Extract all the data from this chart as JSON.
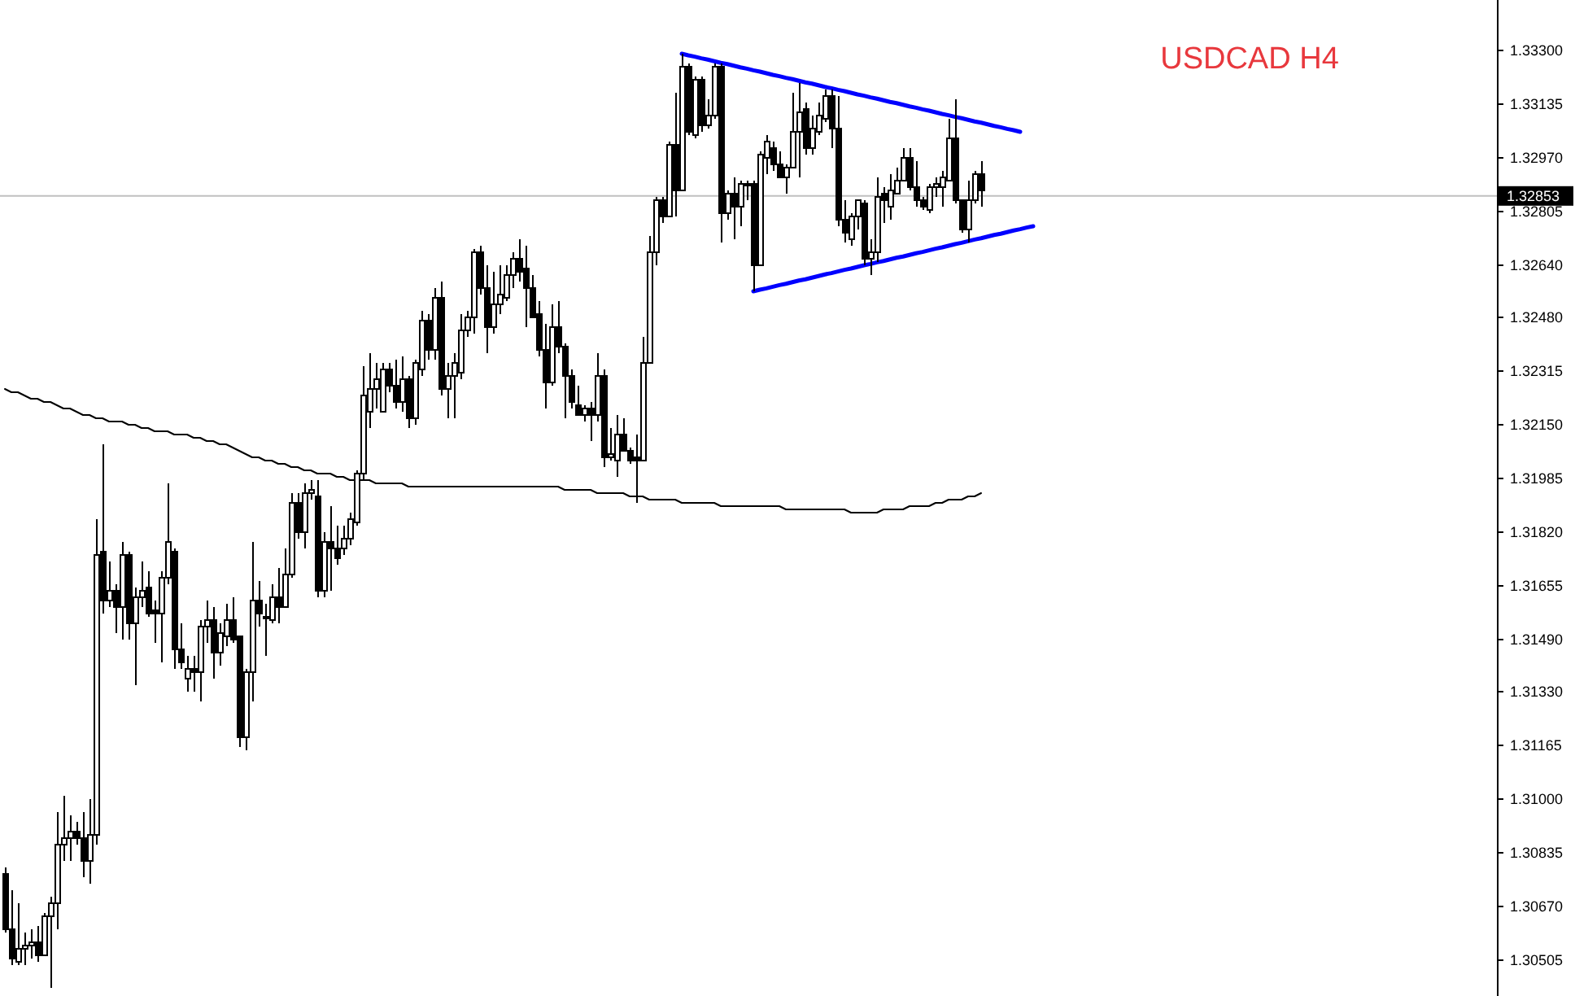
{
  "chart_data": {
    "type": "candlestick",
    "title": "USDCAD H4",
    "categories": [
      null,
      null,
      null,
      null,
      null,
      null,
      null,
      null,
      null,
      null,
      null,
      null,
      null,
      null,
      null,
      null,
      null,
      null,
      null,
      null,
      null,
      null,
      null,
      null,
      null,
      null,
      null,
      null,
      null,
      null,
      null,
      null,
      null,
      null,
      null,
      null,
      null,
      null,
      null,
      null,
      null,
      null,
      null,
      null,
      null,
      null,
      null,
      null,
      null,
      null,
      null,
      null,
      null,
      null,
      null,
      null,
      null,
      null,
      null,
      null,
      null,
      null,
      null,
      null,
      null,
      null,
      null,
      null,
      null,
      null,
      null,
      null,
      null,
      null,
      null,
      null,
      null,
      null,
      null,
      null,
      null,
      null,
      null,
      null,
      null,
      null,
      null,
      null,
      null,
      null,
      null,
      null,
      null,
      null,
      null,
      null,
      null,
      null,
      null,
      null,
      null,
      null,
      null,
      null,
      null,
      null,
      null,
      null,
      null,
      null,
      null,
      null,
      null,
      null,
      null,
      null,
      null,
      null,
      null,
      null,
      null,
      null,
      null,
      null,
      null,
      null,
      null,
      null,
      null,
      null,
      null,
      null,
      null,
      null,
      null,
      null,
      null,
      null,
      null,
      null,
      null,
      null,
      null,
      null,
      null,
      null,
      null,
      null,
      null,
      null,
      null,
      null,
      null,
      null,
      null,
      null,
      null,
      null,
      null
    ],
    "ohlc": [
      [
        1.3077,
        1.3079,
        1.3059,
        1.306
      ],
      [
        1.306,
        1.3072,
        1.3049,
        1.3051
      ],
      [
        1.305,
        1.3068,
        1.3049,
        1.3054
      ],
      [
        1.3054,
        1.3059,
        1.3049,
        1.3055
      ],
      [
        1.3055,
        1.306,
        1.3051,
        1.3056
      ],
      [
        1.3056,
        1.3061,
        1.305,
        1.3052
      ],
      [
        1.3052,
        1.3065,
        1.3052,
        1.3064
      ],
      [
        1.3064,
        1.307,
        1.3042,
        1.3068
      ],
      [
        1.3068,
        1.3096,
        1.306,
        1.3086
      ],
      [
        1.3086,
        1.3101,
        1.3081,
        1.3088
      ],
      [
        1.3088,
        1.3095,
        1.3081,
        1.309
      ],
      [
        1.309,
        1.3093,
        1.3086,
        1.3088
      ],
      [
        1.3088,
        1.3096,
        1.3076,
        1.3081
      ],
      [
        1.3081,
        1.31,
        1.3074,
        1.3089
      ],
      [
        1.3089,
        1.3186,
        1.3086,
        1.3175
      ],
      [
        1.3176,
        1.3209,
        1.3157,
        1.3161
      ],
      [
        1.3161,
        1.3173,
        1.3159,
        1.3164
      ],
      [
        1.3164,
        1.3166,
        1.3151,
        1.3159
      ],
      [
        1.3159,
        1.3179,
        1.3149,
        1.3175
      ],
      [
        1.3175,
        1.3176,
        1.3149,
        1.3154
      ],
      [
        1.3154,
        1.3165,
        1.3135,
        1.3162
      ],
      [
        1.3162,
        1.3173,
        1.3159,
        1.3164
      ],
      [
        1.3165,
        1.317,
        1.3156,
        1.3157
      ],
      [
        1.3158,
        1.3161,
        1.3148,
        1.3157
      ],
      [
        1.3157,
        1.317,
        1.3142,
        1.3168
      ],
      [
        1.3168,
        1.3197,
        1.3166,
        1.3179
      ],
      [
        1.3176,
        1.3177,
        1.314,
        1.3146
      ],
      [
        1.3146,
        1.3154,
        1.314,
        1.3142
      ],
      [
        1.3137,
        1.3144,
        1.3133,
        1.314
      ],
      [
        1.314,
        1.3144,
        1.3133,
        1.3139
      ],
      [
        1.3139,
        1.3155,
        1.313,
        1.3153
      ],
      [
        1.3153,
        1.3161,
        1.3148,
        1.3155
      ],
      [
        1.3155,
        1.3159,
        1.3137,
        1.3145
      ],
      [
        1.3145,
        1.3154,
        1.3141,
        1.3151
      ],
      [
        1.315,
        1.316,
        1.3147,
        1.3155
      ],
      [
        1.3155,
        1.3162,
        1.3148,
        1.3149
      ],
      [
        1.315,
        1.315,
        1.3116,
        1.3119
      ],
      [
        1.3119,
        1.314,
        1.3115,
        1.3139
      ],
      [
        1.3139,
        1.3179,
        1.313,
        1.3161
      ],
      [
        1.3161,
        1.3167,
        1.3153,
        1.3157
      ],
      [
        1.3156,
        1.316,
        1.3144,
        1.3156
      ],
      [
        1.3155,
        1.3166,
        1.3154,
        1.3162
      ],
      [
        1.3162,
        1.3171,
        1.3154,
        1.3159
      ],
      [
        1.3159,
        1.3177,
        1.3159,
        1.3169
      ],
      [
        1.3169,
        1.3194,
        1.3168,
        1.3191
      ],
      [
        1.3191,
        1.3194,
        1.318,
        1.3182
      ],
      [
        1.3182,
        1.3197,
        1.3177,
        1.3194
      ],
      [
        1.3194,
        1.3198,
        1.3192,
        1.3195
      ],
      [
        1.3193,
        1.3198,
        1.3162,
        1.3164
      ],
      [
        1.3164,
        1.3182,
        1.3162,
        1.3179
      ],
      [
        1.3179,
        1.319,
        1.3164,
        1.3177
      ],
      [
        1.3177,
        1.3184,
        1.3172,
        1.3174
      ],
      [
        1.3177,
        1.3184,
        1.3175,
        1.318
      ],
      [
        1.318,
        1.3188,
        1.3178,
        1.3186
      ],
      [
        1.3185,
        1.3201,
        1.3184,
        1.32
      ],
      [
        1.32,
        1.3233,
        1.3198,
        1.3224
      ],
      [
        1.3219,
        1.3237,
        1.3214,
        1.3226
      ],
      [
        1.3226,
        1.3234,
        1.322,
        1.3229
      ],
      [
        1.3219,
        1.3234,
        1.3219,
        1.3232
      ],
      [
        1.3232,
        1.3234,
        1.3225,
        1.3227
      ],
      [
        1.3227,
        1.3235,
        1.322,
        1.3222
      ],
      [
        1.3222,
        1.3236,
        1.3219,
        1.3229
      ],
      [
        1.3229,
        1.323,
        1.3214,
        1.3217
      ],
      [
        1.3217,
        1.3235,
        1.3215,
        1.3234
      ],
      [
        1.3232,
        1.325,
        1.323,
        1.3247
      ],
      [
        1.3247,
        1.3249,
        1.3235,
        1.3238
      ],
      [
        1.3238,
        1.3257,
        1.3235,
        1.3254
      ],
      [
        1.3254,
        1.3259,
        1.3224,
        1.3226
      ],
      [
        1.3226,
        1.3234,
        1.3217,
        1.323
      ],
      [
        1.323,
        1.3237,
        1.3217,
        1.3234
      ],
      [
        1.3231,
        1.3249,
        1.3229,
        1.3244
      ],
      [
        1.3244,
        1.325,
        1.3242,
        1.3248
      ],
      [
        1.3248,
        1.3269,
        1.3243,
        1.3268
      ],
      [
        1.3268,
        1.327,
        1.3255,
        1.3257
      ],
      [
        1.3257,
        1.3264,
        1.3237,
        1.3245
      ],
      [
        1.3245,
        1.3262,
        1.3243,
        1.3252
      ],
      [
        1.3252,
        1.3264,
        1.3249,
        1.3255
      ],
      [
        1.3254,
        1.3264,
        1.3253,
        1.3261
      ],
      [
        1.3261,
        1.3268,
        1.3257,
        1.3266
      ],
      [
        1.3266,
        1.3272,
        1.3259,
        1.3262
      ],
      [
        1.3263,
        1.327,
        1.3245,
        1.3257
      ],
      [
        1.3257,
        1.3261,
        1.3248,
        1.3248
      ],
      [
        1.3249,
        1.3253,
        1.3236,
        1.3238
      ],
      [
        1.3238,
        1.3246,
        1.322,
        1.3228
      ],
      [
        1.3228,
        1.3252,
        1.3227,
        1.3245
      ],
      [
        1.3245,
        1.3253,
        1.3237,
        1.3239
      ],
      [
        1.3239,
        1.324,
        1.3217,
        1.323
      ],
      [
        1.323,
        1.3232,
        1.322,
        1.3222
      ],
      [
        1.3221,
        1.3227,
        1.3218,
        1.3218
      ],
      [
        1.3218,
        1.3221,
        1.3216,
        1.322
      ],
      [
        1.322,
        1.3222,
        1.321,
        1.3218
      ],
      [
        1.3218,
        1.3237,
        1.3216,
        1.323
      ],
      [
        1.323,
        1.3232,
        1.3202,
        1.3205
      ],
      [
        1.3205,
        1.3214,
        1.3204,
        1.3206
      ],
      [
        1.3204,
        1.3218,
        1.3199,
        1.3212
      ],
      [
        1.3212,
        1.3217,
        1.3207,
        1.3207
      ],
      [
        1.3207,
        1.3208,
        1.3203,
        1.3204
      ],
      [
        1.3205,
        1.3212,
        1.3191,
        1.3204
      ],
      [
        1.3204,
        1.3242,
        1.3204,
        1.3234
      ],
      [
        1.3234,
        1.3273,
        1.3234,
        1.3268
      ],
      [
        1.3268,
        1.3285,
        1.3264,
        1.3284
      ],
      [
        1.3284,
        1.3285,
        1.3277,
        1.3279
      ],
      [
        1.3279,
        1.3302,
        1.3279,
        1.3301
      ],
      [
        1.3301,
        1.3317,
        1.3279,
        1.3287
      ],
      [
        1.3287,
        1.3329,
        1.3287,
        1.3325
      ],
      [
        1.3325,
        1.3326,
        1.3304,
        1.3305
      ],
      [
        1.3304,
        1.3322,
        1.3303,
        1.3321
      ],
      [
        1.3321,
        1.3322,
        1.3305,
        1.3307
      ],
      [
        1.3307,
        1.3315,
        1.3306,
        1.331
      ],
      [
        1.331,
        1.3326,
        1.3309,
        1.3325
      ],
      [
        1.3325,
        1.3326,
        1.3271,
        1.328
      ],
      [
        1.328,
        1.3287,
        1.3278,
        1.3286
      ],
      [
        1.3286,
        1.3291,
        1.3272,
        1.3282
      ],
      [
        1.3282,
        1.329,
        1.3276,
        1.3289
      ],
      [
        1.3289,
        1.329,
        1.3284,
        1.3289
      ],
      [
        1.3289,
        1.329,
        1.3256,
        1.3264
      ],
      [
        1.3264,
        1.3299,
        1.3264,
        1.3298
      ],
      [
        1.3297,
        1.3304,
        1.3292,
        1.3302
      ],
      [
        1.33,
        1.3302,
        1.3293,
        1.3295
      ],
      [
        1.3295,
        1.3299,
        1.3291,
        1.3291
      ],
      [
        1.3291,
        1.3295,
        1.3286,
        1.3294
      ],
      [
        1.3294,
        1.3317,
        1.3294,
        1.3305
      ],
      [
        1.3305,
        1.332,
        1.3291,
        1.3311
      ],
      [
        1.3312,
        1.3314,
        1.3298,
        1.33
      ],
      [
        1.33,
        1.331,
        1.3298,
        1.3306
      ],
      [
        1.3305,
        1.3314,
        1.3304,
        1.331
      ],
      [
        1.3309,
        1.3318,
        1.3308,
        1.3316
      ],
      [
        1.3316,
        1.3318,
        1.33,
        1.3306
      ],
      [
        1.3306,
        1.3316,
        1.3276,
        1.3278
      ],
      [
        1.3278,
        1.3284,
        1.3271,
        1.3274
      ],
      [
        1.3272,
        1.328,
        1.327,
        1.3279
      ],
      [
        1.3279,
        1.3284,
        1.3275,
        1.3284
      ],
      [
        1.3283,
        1.3284,
        1.3264,
        1.3266
      ],
      [
        1.3266,
        1.3272,
        1.3261,
        1.3268
      ],
      [
        1.3268,
        1.3291,
        1.3265,
        1.3285
      ],
      [
        1.3286,
        1.3288,
        1.3277,
        1.3284
      ],
      [
        1.3282,
        1.3292,
        1.3278,
        1.3287
      ],
      [
        1.3286,
        1.3294,
        1.3286,
        1.329
      ],
      [
        1.329,
        1.33,
        1.329,
        1.3297
      ],
      [
        1.3297,
        1.33,
        1.3287,
        1.3288
      ],
      [
        1.3288,
        1.3296,
        1.3282,
        1.3284
      ],
      [
        1.3284,
        1.3285,
        1.3281,
        1.3282
      ],
      [
        1.3281,
        1.3289,
        1.328,
        1.3288
      ],
      [
        1.3288,
        1.3291,
        1.3285,
        1.3289
      ],
      [
        1.3288,
        1.3293,
        1.3282,
        1.3291
      ],
      [
        1.329,
        1.3309,
        1.329,
        1.3303
      ],
      [
        1.3303,
        1.3315,
        1.3283,
        1.3284
      ],
      [
        1.3284,
        1.3284,
        1.3274,
        1.3275
      ],
      [
        1.3275,
        1.329,
        1.3271,
        1.3284
      ],
      [
        1.3284,
        1.3293,
        1.3283,
        1.3292
      ],
      [
        1.3292,
        1.3296,
        1.3282,
        1.3287
      ],
      null,
      null,
      null,
      null,
      null,
      null,
      null,
      null
    ],
    "series": [
      {
        "type": "line",
        "color": "#000000",
        "values": [
          1.3226,
          1.3225,
          1.3225,
          1.3224,
          1.3223,
          1.3223,
          1.3222,
          1.3222,
          1.3221,
          1.322,
          1.322,
          1.3219,
          1.3218,
          1.3218,
          1.3217,
          1.3217,
          1.3216,
          1.3216,
          1.3216,
          1.3215,
          1.3215,
          1.3214,
          1.3214,
          1.3213,
          1.3213,
          1.3213,
          1.3212,
          1.3212,
          1.3212,
          1.3211,
          1.3211,
          1.321,
          1.321,
          1.3209,
          1.3209,
          1.3208,
          1.3207,
          1.3206,
          1.3205,
          1.3205,
          1.3204,
          1.3204,
          1.3203,
          1.3203,
          1.3202,
          1.3202,
          1.3201,
          1.3201,
          1.32,
          1.32,
          1.32,
          1.3199,
          1.3199,
          1.3198,
          1.3198,
          1.3198,
          1.3198,
          1.3197,
          1.3197,
          1.3197,
          1.3197,
          1.3197,
          1.3196,
          1.3196,
          1.3196,
          1.3196,
          1.3196,
          1.3196,
          1.3196,
          1.3196,
          1.3196,
          1.3196,
          1.3196,
          1.3196,
          1.3196,
          1.3196,
          1.3196,
          1.3196,
          1.3196,
          1.3196,
          1.3196,
          1.3196,
          1.3196,
          1.3196,
          1.3196,
          1.3196,
          1.3195,
          1.3195,
          1.3195,
          1.3195,
          1.3195,
          1.3194,
          1.3194,
          1.3194,
          1.3194,
          1.3194,
          1.3193,
          1.3193,
          1.3193,
          1.3192,
          1.3192,
          1.3192,
          1.3192,
          1.3192,
          1.3191,
          1.3191,
          1.3191,
          1.3191,
          1.3191,
          1.3191,
          1.319,
          1.319,
          1.319,
          1.319,
          1.319,
          1.319,
          1.319,
          1.319,
          1.319,
          1.319,
          1.3189,
          1.3189,
          1.3189,
          1.3189,
          1.3189,
          1.3189,
          1.3189,
          1.3189,
          1.3189,
          1.3189,
          1.3188,
          1.3188,
          1.3188,
          1.3188,
          1.3188,
          1.3189,
          1.3189,
          1.3189,
          1.3189,
          1.319,
          1.319,
          1.319,
          1.319,
          1.3191,
          1.3191,
          1.3192,
          1.3192,
          1.3192,
          1.3193,
          1.3193,
          1.3194,
          null,
          null,
          null,
          null,
          null,
          null,
          null,
          null
        ]
      },
      {
        "type": "line",
        "color": "#0000ff",
        "values": [
          null,
          null,
          null,
          null,
          null,
          null,
          null,
          null,
          null,
          null,
          null,
          null,
          null,
          null,
          null,
          null,
          null,
          null,
          null,
          null,
          null,
          null,
          null,
          null,
          null,
          null,
          null,
          null,
          null,
          null,
          null,
          null,
          null,
          null,
          null,
          null,
          null,
          null,
          null,
          null,
          null,
          null,
          null,
          null,
          null,
          null,
          null,
          null,
          null,
          null,
          null,
          null,
          null,
          null,
          null,
          null,
          null,
          null,
          null,
          null,
          null,
          null,
          null,
          null,
          null,
          null,
          null,
          null,
          null,
          null,
          null,
          null,
          null,
          null,
          null,
          null,
          null,
          null,
          null,
          null,
          null,
          null,
          null,
          null,
          null,
          null,
          null,
          null,
          null,
          null,
          null,
          null,
          null,
          null,
          null,
          null,
          null,
          null,
          null,
          null,
          null,
          null,
          null,
          null,
          1.3329,
          1.33285,
          1.33281,
          1.33276,
          1.33272,
          1.33267,
          1.33262,
          1.33258,
          1.33253,
          1.33248,
          1.33244,
          1.33239,
          1.33235,
          1.3323,
          1.33225,
          1.33221,
          1.33216,
          1.33212,
          1.33207,
          1.33202,
          1.33198,
          1.33193,
          1.33188,
          1.33184,
          1.33179,
          1.33175,
          1.3317,
          1.33165,
          1.33161,
          1.33156,
          1.33152,
          1.33147,
          1.33142,
          1.33138,
          1.33133,
          1.33128,
          1.33124,
          1.33119,
          1.33115,
          1.3311,
          1.33105,
          1.33101,
          1.33096,
          1.33092,
          1.33087,
          1.33082,
          1.33078,
          1.33073,
          1.33068,
          1.33064,
          1.33059,
          1.33055,
          1.3305,
          null,
          null
        ]
      },
      {
        "type": "line",
        "color": "#0000ff",
        "values": [
          null,
          null,
          null,
          null,
          null,
          null,
          null,
          null,
          null,
          null,
          null,
          null,
          null,
          null,
          null,
          null,
          null,
          null,
          null,
          null,
          null,
          null,
          null,
          null,
          null,
          null,
          null,
          null,
          null,
          null,
          null,
          null,
          null,
          null,
          null,
          null,
          null,
          null,
          null,
          null,
          null,
          null,
          null,
          null,
          null,
          null,
          null,
          null,
          null,
          null,
          null,
          null,
          null,
          null,
          null,
          null,
          null,
          null,
          null,
          null,
          null,
          null,
          null,
          null,
          null,
          null,
          null,
          null,
          null,
          null,
          null,
          null,
          null,
          null,
          null,
          null,
          null,
          null,
          null,
          null,
          null,
          null,
          null,
          null,
          null,
          null,
          null,
          null,
          null,
          null,
          null,
          null,
          null,
          null,
          null,
          null,
          null,
          null,
          null,
          null,
          null,
          null,
          null,
          null,
          null,
          null,
          null,
          null,
          null,
          null,
          null,
          null,
          null,
          null,
          null,
          1.3256,
          1.32565,
          1.32569,
          1.32574,
          1.32579,
          1.32583,
          1.32588,
          1.32593,
          1.32597,
          1.32602,
          1.32607,
          1.32612,
          1.32616,
          1.32621,
          1.32626,
          1.3263,
          1.32635,
          1.3264,
          1.32644,
          1.32649,
          1.32653,
          1.32658,
          1.32663,
          1.32667,
          1.32672,
          1.32677,
          1.32681,
          1.32686,
          1.32691,
          1.32695,
          1.327,
          1.32705,
          1.32709,
          1.32714,
          1.32719,
          1.32723,
          1.32728,
          1.32733,
          1.32737,
          1.32742,
          1.32747,
          1.32751,
          1.32756,
          1.3276
        ]
      }
    ],
    "ylim": [
      1.30395,
      1.33455
    ],
    "yticks": [
      {
        "value": 1.333,
        "label": "1.33300"
      },
      {
        "value": 1.33135,
        "label": "1.33135"
      },
      {
        "value": 1.3297,
        "label": "1.32970"
      },
      {
        "value": 1.32805,
        "label": "1.32805"
      },
      {
        "value": 1.3264,
        "label": "1.32640"
      },
      {
        "value": 1.3248,
        "label": "1.32480"
      },
      {
        "value": 1.32315,
        "label": "1.32315"
      },
      {
        "value": 1.3215,
        "label": "1.32150"
      },
      {
        "value": 1.31985,
        "label": "1.31985"
      },
      {
        "value": 1.3182,
        "label": "1.31820"
      },
      {
        "value": 1.31655,
        "label": "1.31655"
      },
      {
        "value": 1.3149,
        "label": "1.31490"
      },
      {
        "value": 1.3133,
        "label": "1.31330"
      },
      {
        "value": 1.31165,
        "label": "1.31165"
      },
      {
        "value": 1.31,
        "label": "1.31000"
      },
      {
        "value": 1.30835,
        "label": "1.30835"
      },
      {
        "value": 1.3067,
        "label": "1.30670"
      },
      {
        "value": 1.30505,
        "label": "1.30505"
      }
    ],
    "tick_labels": "y",
    "ref_lines": [
      {
        "axis": "y",
        "value": 1.32853,
        "label": "1.32853",
        "color": "#c0c0c0"
      }
    ]
  }
}
